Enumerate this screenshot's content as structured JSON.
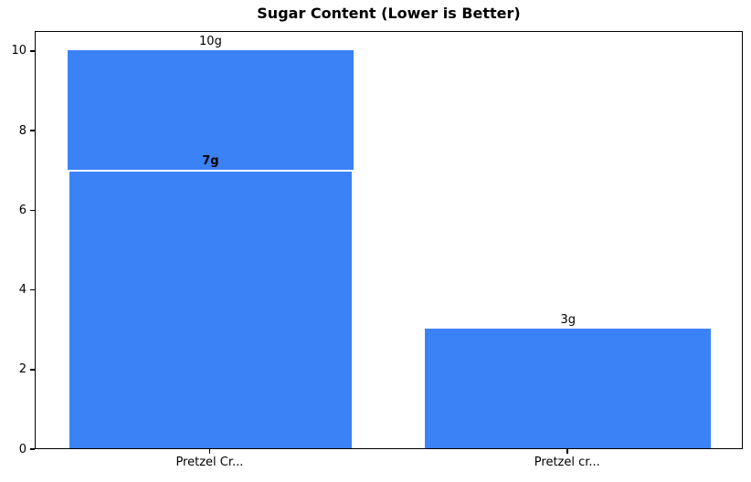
{
  "chart_data": {
    "type": "bar",
    "title": "Sugar Content (Lower is Better)",
    "categories": [
      "Pretzel Cr...",
      "Pretzel cr..."
    ],
    "bars": [
      {
        "category": "Pretzel Cr...",
        "segments": [
          {
            "value": 10,
            "label": "10g",
            "emphasis": false
          },
          {
            "value": 7,
            "label": "7g",
            "emphasis": true
          }
        ]
      },
      {
        "category": "Pretzel cr...",
        "segments": [
          {
            "value": 3,
            "label": "3g",
            "emphasis": false
          }
        ]
      }
    ],
    "xlabel": "",
    "ylabel": "",
    "yticks": [
      0,
      2,
      4,
      6,
      8,
      10
    ],
    "ylim": [
      0,
      10.5
    ],
    "grid": false,
    "legend": null,
    "bar_color": "#3b82f6",
    "overlay_edge_color": "#ffffff",
    "spine_color": "#000000",
    "text_color": "#000000",
    "background": "#ffffff"
  }
}
